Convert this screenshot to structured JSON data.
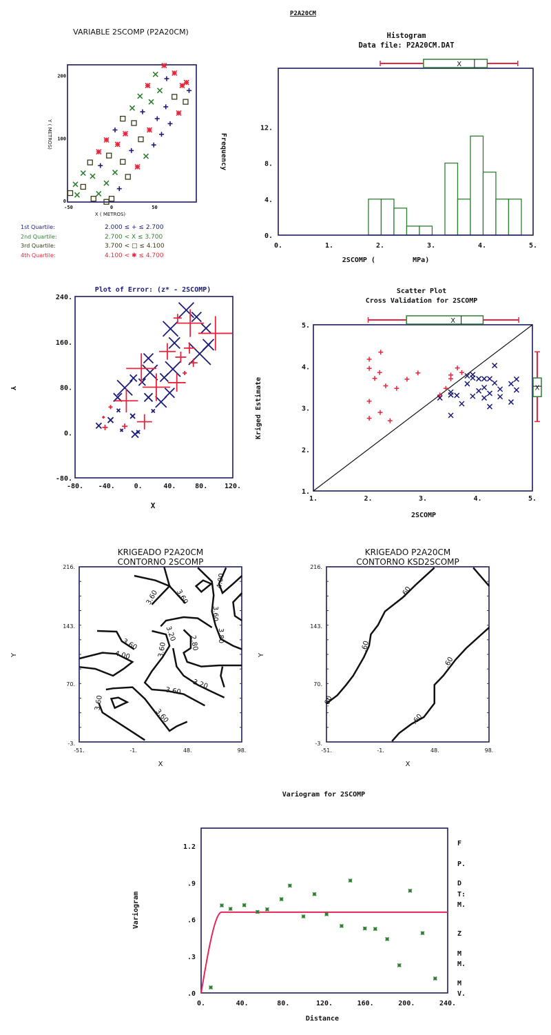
{
  "page_title": "P2A20CM",
  "colors": {
    "q1": "#1c1c78",
    "q2": "#2e7d32",
    "q3": "#3a3a1a",
    "q4": "#e8243c",
    "model": "#e8245a",
    "box": "#2e7d32",
    "whisker": "#e8243c",
    "axis": "#1a1a5a"
  },
  "location_legend": [
    {
      "label": "1st Quartile:",
      "range": "2.000 ≤ + ≤ 2.700"
    },
    {
      "label": "2nd Quartile:",
      "range": "2.700 < X ≤ 3.700"
    },
    {
      "label": "3rd Quartile:",
      "range": "3.700 < □ ≤ 4.100"
    },
    {
      "label": "4th Quartile:",
      "range": "4.100 < ✱ ≤ 4.700"
    }
  ],
  "chart_data": [
    {
      "type": "scatter",
      "id": "location",
      "title": "VARIABLE 2SCOMP (P2A20CM)",
      "xlabel": "X (    METROS)",
      "ylabel": "Y (    METROS)",
      "xlim": [
        -52,
        92
      ],
      "ylim": [
        -4,
        216
      ],
      "xticks": [
        "-50",
        "0",
        "50"
      ],
      "xtick_values": [
        -50,
        0,
        50
      ],
      "yticks": [
        "0",
        "100",
        "200"
      ],
      "ytick_values": [
        0,
        100,
        200
      ],
      "series": [
        {
          "name": "1st Quartile",
          "marker": "plus",
          "points": [
            [
              64,
              194
            ],
            [
              90,
              175
            ],
            [
              63,
              149
            ],
            [
              36,
              141
            ],
            [
              53,
              130
            ],
            [
              68,
              122
            ],
            [
              4,
              112
            ],
            [
              58,
              105
            ],
            [
              49,
              88
            ],
            [
              23,
              79
            ],
            [
              -13,
              55
            ],
            [
              9,
              18
            ]
          ]
        },
        {
          "name": "2nd Quartile",
          "marker": "x",
          "points": [
            [
              51,
              201
            ],
            [
              56,
              175
            ],
            [
              33,
              166
            ],
            [
              46,
              157
            ],
            [
              24,
              147
            ],
            [
              40,
              70
            ],
            [
              4,
              44
            ],
            [
              -33,
              43
            ],
            [
              -22,
              38
            ],
            [
              -6,
              27
            ],
            [
              -42,
              25
            ],
            [
              -15,
              10
            ],
            [
              -40,
              8
            ]
          ]
        },
        {
          "name": "3rd Quartile",
          "marker": "square",
          "points": [
            [
              73,
              165
            ],
            [
              86,
              157
            ],
            [
              13,
              130
            ],
            [
              26,
              123
            ],
            [
              34,
              97
            ],
            [
              -3,
              71
            ],
            [
              13,
              61
            ],
            [
              -25,
              60
            ],
            [
              19,
              37
            ],
            [
              -33,
              21
            ],
            [
              -48,
              11
            ],
            [
              -21,
              2
            ],
            [
              0,
              2
            ],
            [
              -6,
              -3
            ]
          ]
        },
        {
          "name": "4th Quartile",
          "marker": "star",
          "points": [
            [
              61,
              215
            ],
            [
              73,
              203
            ],
            [
              82,
              183
            ],
            [
              87,
              188
            ],
            [
              42,
              183
            ],
            [
              78,
              139
            ],
            [
              44,
              112
            ],
            [
              16,
              106
            ],
            [
              -6,
              96
            ],
            [
              7,
              89
            ],
            [
              -15,
              77
            ],
            [
              30,
              53
            ]
          ]
        }
      ]
    },
    {
      "type": "bar",
      "id": "histogram",
      "title": "Histogram",
      "subtitle": "Data file: P2A20CM.DAT",
      "xlabel": "2SCOMP (         MPa)",
      "ylabel": "Frequency",
      "xlim": [
        0,
        5
      ],
      "ylim": [
        0,
        13.1
      ],
      "xticks": [
        "0.",
        "1.",
        "2.",
        "3.",
        "4.",
        "5."
      ],
      "xtick_values": [
        0,
        1,
        2,
        3,
        4,
        5
      ],
      "yticks": [
        "0.",
        "4.",
        "8.",
        "12."
      ],
      "ytick_values": [
        0,
        4,
        8,
        12
      ],
      "bin_width": 0.25,
      "bin_starts": [
        1.77,
        2.02,
        2.27,
        2.52,
        2.77,
        3.27,
        3.52,
        3.77,
        4.02,
        4.27,
        4.52
      ],
      "values": [
        4,
        4,
        3,
        1,
        1,
        8,
        4,
        11,
        7,
        4,
        4
      ],
      "boxplot": {
        "min": 2.0,
        "q1": 2.85,
        "median": 3.85,
        "q3": 4.1,
        "max": 4.7,
        "mean": 3.55,
        "mean_marker": "X"
      }
    },
    {
      "type": "scatter",
      "id": "error_plot",
      "title": "Plot of Error: (z* - 2SCOMP)",
      "xlabel": "X",
      "ylabel": "Y",
      "xlim": [
        -80,
        120
      ],
      "ylim": [
        -80,
        240
      ],
      "xticks": [
        "-80.",
        "-40.",
        "0.",
        "40.",
        "80.",
        "120."
      ],
      "xtick_values": [
        -80,
        -40,
        0,
        40,
        80,
        120
      ],
      "yticks": [
        "-80.",
        "0.",
        "80.",
        "160.",
        "240."
      ],
      "ytick_values": [
        -80,
        0,
        80,
        160,
        240
      ],
      "series": [
        {
          "name": "overestimate",
          "marker": "x",
          "points": [
            [
              61,
              216,
              22
            ],
            [
              74,
              204,
              14
            ],
            [
              41,
              183,
              22
            ],
            [
              86,
              184,
              14
            ],
            [
              46,
              158,
              16
            ],
            [
              89,
              155,
              16
            ],
            [
              78,
              139,
              32
            ],
            [
              13,
              131,
              14
            ],
            [
              44,
              112,
              22
            ],
            [
              15,
              106,
              22
            ],
            [
              33,
              97,
              12
            ],
            [
              -6,
              96,
              10
            ],
            [
              5,
              89,
              10
            ],
            [
              -17,
              79,
              22
            ],
            [
              40,
              70,
              14
            ],
            [
              -26,
              62,
              12
            ],
            [
              13,
              62,
              12
            ],
            [
              29,
              54,
              16
            ],
            [
              -25,
              39,
              5
            ],
            [
              19,
              38,
              5
            ],
            [
              -7,
              29,
              7
            ],
            [
              -35,
              22,
              8
            ],
            [
              -50,
              12,
              8
            ],
            [
              -4,
              -3,
              10
            ],
            [
              -21,
              4,
              4
            ],
            [
              0,
              1,
              5
            ]
          ]
        },
        {
          "name": "underestimate",
          "marker": "plus",
          "points": [
            [
              50,
              202,
              12
            ],
            [
              66,
              193,
              40
            ],
            [
              98,
              175,
              50
            ],
            [
              37,
              143,
              24
            ],
            [
              65,
              149,
              16
            ],
            [
              54,
              133,
              16
            ],
            [
              70,
              123,
              12
            ],
            [
              4,
              113,
              44
            ],
            [
              23,
              80,
              40
            ],
            [
              49,
              88,
              26
            ],
            [
              -15,
              56,
              34
            ],
            [
              8,
              19,
              22
            ],
            [
              -35,
              45,
              6
            ],
            [
              -44,
              27,
              4
            ],
            [
              -42,
              9,
              8
            ],
            [
              -17,
              11,
              8
            ],
            [
              59,
              105,
              6
            ]
          ]
        }
      ]
    },
    {
      "type": "scatter",
      "id": "cross_validation",
      "title": "Scatter Plot",
      "subtitle": "Cross Validation for 2SCOMP",
      "xlabel": "2SCOMP",
      "ylabel": "Kriged Estimate",
      "xlim": [
        1,
        5
      ],
      "ylim": [
        1,
        5
      ],
      "xticks": [
        "1.",
        "2.",
        "3.",
        "4.",
        "5."
      ],
      "xtick_values": [
        1,
        2,
        3,
        4,
        5
      ],
      "yticks": [
        "1.",
        "2.",
        "3.",
        "4.",
        "5."
      ],
      "ytick_values": [
        1,
        2,
        3,
        4,
        5
      ],
      "series": [
        {
          "name": "overestimate",
          "marker": "plus",
          "points": [
            [
              2.02,
              4.17
            ],
            [
              2.02,
              3.95
            ],
            [
              2.23,
              4.34
            ],
            [
              2.21,
              3.85
            ],
            [
              2.12,
              3.71
            ],
            [
              2.32,
              3.53
            ],
            [
              2.52,
              3.47
            ],
            [
              2.02,
              3.16
            ],
            [
              2.02,
              2.75
            ],
            [
              2.22,
              2.89
            ],
            [
              2.4,
              2.69
            ],
            [
              2.71,
              3.69
            ],
            [
              2.91,
              3.84
            ],
            [
              3.31,
              3.31
            ],
            [
              3.42,
              3.47
            ],
            [
              3.51,
              3.79
            ],
            [
              3.51,
              3.7
            ],
            [
              3.63,
              3.96
            ],
            [
              3.71,
              3.85
            ]
          ]
        },
        {
          "name": "underestimate",
          "marker": "x",
          "points": [
            [
              3.31,
              3.24
            ],
            [
              3.51,
              3.38
            ],
            [
              3.51,
              3.31
            ],
            [
              3.51,
              2.82
            ],
            [
              3.62,
              3.3
            ],
            [
              3.71,
              3.1
            ],
            [
              3.81,
              3.77
            ],
            [
              3.81,
              3.58
            ],
            [
              3.91,
              3.8
            ],
            [
              3.91,
              3.28
            ],
            [
              3.91,
              3.72
            ],
            [
              4.02,
              3.7
            ],
            [
              4.02,
              3.41
            ],
            [
              4.12,
              3.7
            ],
            [
              4.12,
              3.49
            ],
            [
              4.12,
              3.24
            ],
            [
              4.22,
              3.7
            ],
            [
              4.22,
              3.35
            ],
            [
              4.22,
              3.03
            ],
            [
              4.31,
              4.02
            ],
            [
              4.31,
              3.6
            ],
            [
              4.41,
              3.45
            ],
            [
              4.41,
              3.27
            ],
            [
              4.61,
              3.58
            ],
            [
              4.61,
              3.14
            ],
            [
              4.71,
              3.69
            ],
            [
              4.71,
              3.43
            ]
          ]
        }
      ],
      "reference_line": [
        [
          1,
          1
        ],
        [
          5,
          5
        ]
      ],
      "boxplot_x": {
        "min": 2.0,
        "q1": 2.7,
        "median": 3.7,
        "q3": 4.1,
        "max": 4.75,
        "mean": 3.55,
        "mean_marker": "X"
      },
      "boxplot_y": {
        "min": 2.67,
        "q1": 3.27,
        "median": 3.52,
        "q3": 3.72,
        "max": 4.35,
        "mean": 3.5,
        "mean_marker": "X"
      }
    },
    {
      "type": "contour",
      "id": "contour_2scomp",
      "title": "KRIGEADO P2A20CM",
      "subtitle": "CONTORNO 2SCOMP",
      "xlabel": "X",
      "ylabel": "Y",
      "xticks": [
        "-51.",
        "-1.",
        "48.",
        "98."
      ],
      "yticks": [
        "216.",
        "143.",
        "70.",
        "-3."
      ],
      "xlim": [
        -51,
        98
      ],
      "ylim": [
        -3,
        216
      ],
      "levels": [
        "3.60",
        "3.60",
        "3.60",
        "3.80",
        "4.00",
        "3.20",
        "3.60",
        "2.80",
        "3.60",
        "4.00",
        "3.20",
        "3.60",
        "3.60",
        "3.60"
      ]
    },
    {
      "type": "contour",
      "id": "contour_ksd2scomp",
      "title": "KRIGEADO P2A20CM",
      "subtitle": "CONTORNO KSD2SCOMP",
      "xlabel": "X",
      "ylabel": "Y",
      "xticks": [
        "-51.",
        "-1.",
        "48.",
        "98."
      ],
      "yticks": [
        "216.",
        "143.",
        "70.",
        "-3."
      ],
      "xlim": [
        -51,
        98
      ],
      "ylim": [
        -3,
        216
      ],
      "levels": [
        ".60",
        ".60",
        ".60",
        ".60",
        ".60"
      ]
    },
    {
      "type": "scatter",
      "id": "variogram",
      "title": "Variogram for 2SCOMP",
      "xlabel": "Distance",
      "ylabel": "Variogram",
      "xlim": [
        0,
        240
      ],
      "ylim": [
        0,
        1.35
      ],
      "xticks": [
        "0.",
        "40.",
        "80.",
        "120.",
        "160.",
        "200.",
        "240."
      ],
      "xtick_values": [
        0,
        40,
        80,
        120,
        160,
        200,
        240
      ],
      "yticks": [
        ".0",
        ".3",
        ".6",
        ".9",
        "1.2"
      ],
      "ytick_values": [
        0,
        0.3,
        0.6,
        0.9,
        1.2
      ],
      "points": [
        [
          9.4,
          0.045
        ],
        [
          20.1,
          0.715
        ],
        [
          28.6,
          0.687
        ],
        [
          42,
          0.717
        ],
        [
          54.9,
          0.662
        ],
        [
          64.3,
          0.683
        ],
        [
          78.2,
          0.766
        ],
        [
          86.4,
          0.877
        ],
        [
          99.6,
          0.625
        ],
        [
          110.3,
          0.807
        ],
        [
          122.1,
          0.643
        ],
        [
          136.7,
          0.547
        ],
        [
          145.2,
          0.918
        ],
        [
          159.4,
          0.527
        ],
        [
          169.5,
          0.523
        ],
        [
          181.1,
          0.44
        ],
        [
          192.9,
          0.226
        ],
        [
          203.4,
          0.835
        ],
        [
          215.5,
          0.489
        ],
        [
          227.8,
          0.118
        ]
      ],
      "model": {
        "type": "spherical",
        "nugget": 0,
        "sill": 0.66,
        "range": 20
      },
      "side_letters": [
        "F",
        "P.",
        "D",
        "T:",
        "M.",
        "Z",
        "M",
        "M.",
        "M",
        "V."
      ]
    }
  ]
}
